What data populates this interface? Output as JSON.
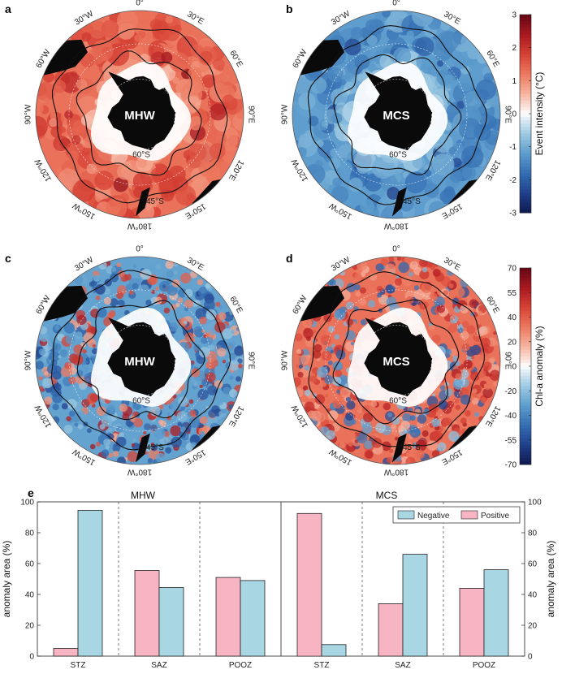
{
  "maps": {
    "panels": [
      {
        "letter": "a",
        "event": "MHW",
        "field": "intensity"
      },
      {
        "letter": "b",
        "event": "MCS",
        "field": "intensity"
      },
      {
        "letter": "c",
        "event": "MHW",
        "field": "chla"
      },
      {
        "letter": "d",
        "event": "MCS",
        "field": "chla"
      }
    ],
    "lon_labels": [
      "0°",
      "30°E",
      "60°E",
      "90°E",
      "120°E",
      "150°E",
      "180°W",
      "150°W",
      "120°W",
      "90°W",
      "60°W",
      "30°W"
    ],
    "lat_labels": [
      "60°S",
      "45°S"
    ],
    "colors": {
      "land": "#0a0a0a",
      "front": "#111111",
      "ice": "#ffffff"
    }
  },
  "colorbars": [
    {
      "label": "Event intensity (°C)",
      "ticks": [
        "3",
        "2",
        "1",
        "0",
        "-1",
        "-2",
        "-3"
      ],
      "range": [
        -3,
        3
      ]
    },
    {
      "label": "Chl-a anomaly (%)",
      "ticks": [
        "70",
        "55",
        "40",
        "20",
        "0",
        "-20",
        "-40",
        "-55",
        "-70"
      ],
      "range": [
        -70,
        70
      ]
    }
  ],
  "chart_data": {
    "type": "bar",
    "panel_letter": "e",
    "ylabel": "anomaly area (%)",
    "ylim": [
      0,
      100
    ],
    "yticks": [
      "0",
      "20",
      "40",
      "60",
      "80",
      "100"
    ],
    "groups": [
      {
        "title": "MHW",
        "categories": [
          "STZ",
          "SAZ",
          "POOZ"
        ],
        "series": [
          {
            "name": "Positive",
            "values": [
              5,
              55.5,
              51
            ]
          },
          {
            "name": "Negative",
            "values": [
              94.5,
              44.5,
              49
            ]
          }
        ]
      },
      {
        "title": "MCS",
        "categories": [
          "STZ",
          "SAZ",
          "POOZ"
        ],
        "series": [
          {
            "name": "Positive",
            "values": [
              92.5,
              34,
              44
            ]
          },
          {
            "name": "Negative",
            "values": [
              7.5,
              66,
              56
            ]
          }
        ]
      }
    ],
    "legend": {
      "placement": "top-right",
      "entries": [
        "Negative",
        "Positive"
      ]
    },
    "colors": {
      "Positive": "#f7b4c3",
      "Negative": "#a9d6e3"
    }
  }
}
